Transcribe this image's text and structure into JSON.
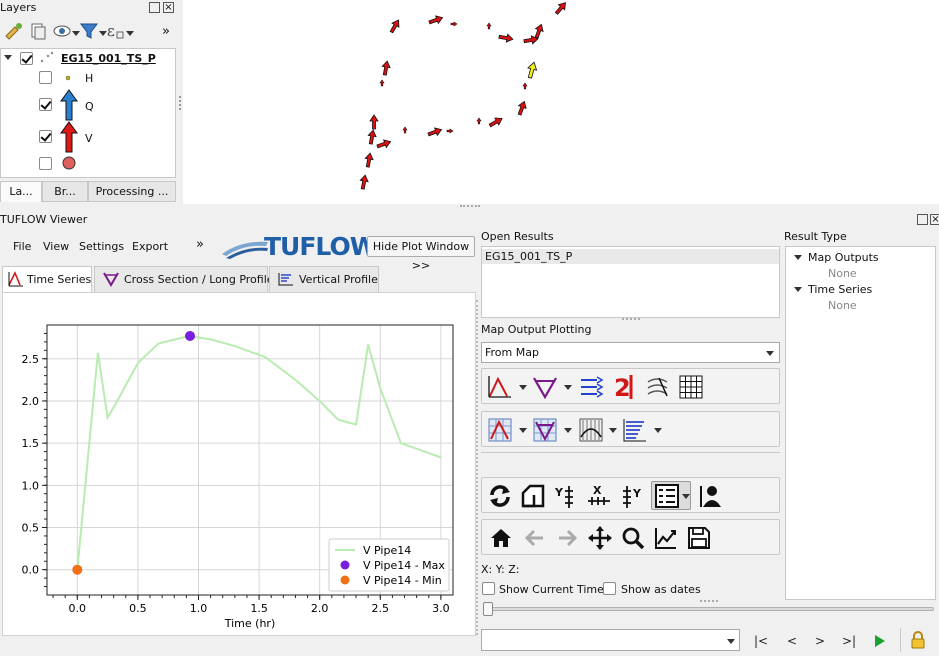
{
  "layers_panel": {
    "title": "Layers",
    "layer_name": "EG15_001_TS_P",
    "legend": [
      {
        "label": "H",
        "checked": false
      },
      {
        "label": "Q",
        "checked": true
      },
      {
        "label": "V",
        "checked": true
      },
      {
        "label": "",
        "checked": false
      }
    ],
    "tabs": [
      "La...",
      "Br...",
      "Processing ..."
    ],
    "more_glyph": "»"
  },
  "viewer": {
    "title": "TUFLOW Viewer",
    "menu": [
      "File",
      "View",
      "Settings",
      "Export"
    ],
    "more_glyph": "»",
    "logo_text": "TUFLOW",
    "hide_plot_button": "Hide Plot Window >>",
    "plot_tabs": [
      "Time Series",
      "Cross Section / Long Profile",
      "Vertical Profile"
    ],
    "open_results_label": "Open Results",
    "open_results_item": "EG15_001_TS_P",
    "map_output_plotting_label": "Map Output Plotting",
    "map_output_combo": "From Map",
    "xyz_readout": "X:  Y:  Z:",
    "show_current_time": "Show Current Time",
    "show_as_dates": "Show as dates",
    "playback": [
      "|<",
      "<",
      ">",
      ">|"
    ],
    "result_type_label": "Result Type",
    "result_type_tree": [
      {
        "label": "Map Outputs",
        "child": "None"
      },
      {
        "label": "Time Series",
        "child": "None"
      }
    ]
  },
  "colors": {
    "series_line": "#b8ecb0",
    "max_marker": "#7a1fe0",
    "min_marker": "#f07018",
    "tuflow_blue": "#1f5fa8",
    "arrow_red": "#dd1111",
    "arrow_yellow": "#f3ef1a"
  },
  "chart_data": {
    "type": "line",
    "xlabel": "Time (hr)",
    "ylabel": "",
    "xlim": [
      -0.25,
      3.1
    ],
    "ylim": [
      -0.3,
      2.9
    ],
    "xticks": [
      0.0,
      0.5,
      1.0,
      1.5,
      2.0,
      2.5,
      3.0
    ],
    "yticks": [
      0.0,
      0.5,
      1.0,
      1.5,
      2.0,
      2.5
    ],
    "grid": true,
    "legend_position": "bottom-right",
    "series": [
      {
        "name": "V Pipe14",
        "kind": "line",
        "x": [
          0.0,
          0.17,
          0.25,
          0.33,
          0.5,
          0.67,
          0.92,
          1.1,
          1.3,
          1.55,
          1.8,
          2.0,
          2.15,
          2.3,
          2.4,
          2.5,
          2.67,
          3.0
        ],
        "y": [
          0.0,
          2.57,
          1.8,
          2.0,
          2.45,
          2.68,
          2.77,
          2.73,
          2.65,
          2.52,
          2.25,
          2.0,
          1.78,
          1.72,
          2.67,
          2.15,
          1.5,
          1.33
        ]
      },
      {
        "name": "V Pipe14 - Max",
        "kind": "point",
        "x": [
          0.93
        ],
        "y": [
          2.77
        ]
      },
      {
        "name": "V Pipe14 - Min",
        "kind": "point",
        "x": [
          0.0
        ],
        "y": [
          0.0
        ]
      }
    ]
  }
}
